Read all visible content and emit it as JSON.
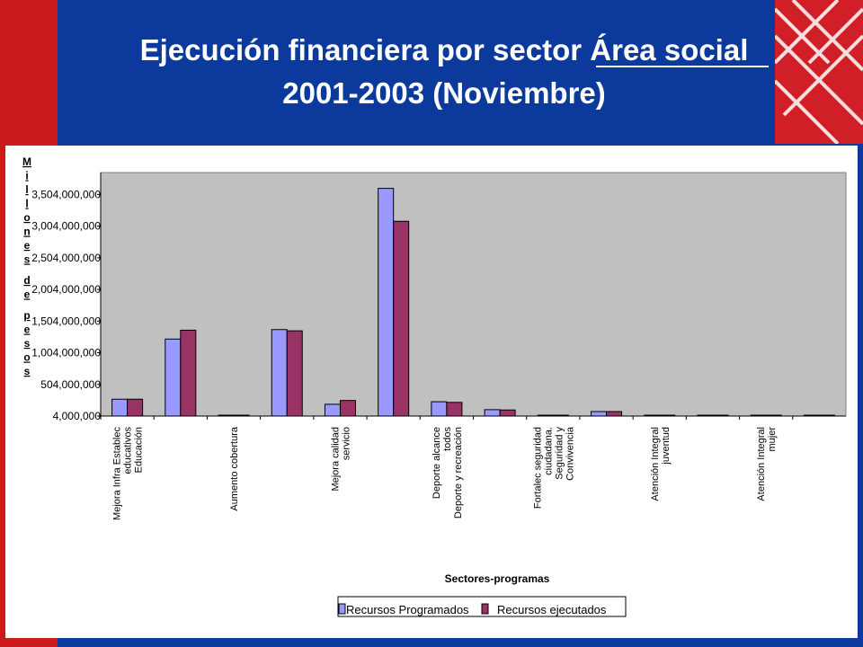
{
  "title_line1": "Ejecución financiera por sector Área social",
  "title_line2": "2001-2003 (Noviembre)",
  "colors": {
    "background": "#0b3a9c",
    "accent_red": "#cc1b1b",
    "plot_bg": "#c0c0c0",
    "programados": "#9999ff",
    "ejecutados": "#993366"
  },
  "chart_data": {
    "type": "bar",
    "ylabel": "Millones de pesos",
    "xlabel": "Sectores-programas",
    "ylim": [
      4000000,
      3850000000
    ],
    "yticks": [
      4000000,
      504000000,
      1004000000,
      1504000000,
      2004000000,
      2504000000,
      3004000000,
      3504000000
    ],
    "ytick_labels": [
      "4,000,000",
      "504,000,000",
      "1,004,000,000",
      "1,504,000,000",
      "2,004,000,000",
      "2,504,000,000",
      "3,004,000,000",
      "3,504,000,000"
    ],
    "categories": [
      "Mejora Infra Establec educativos Educación",
      "",
      "Aumento cobertura",
      "",
      "Mejora calidad servicio",
      "",
      "Deporte alcance todos Deporte y recreación",
      "",
      "Fortalec seguridad ciudadana. Seguridad y Convivencia",
      "",
      "Atención Integral juventud",
      "",
      "Atención Integral mujer",
      ""
    ],
    "category_label_lines": [
      [
        "Mejora Infra Establec",
        "educativos",
        "Educación"
      ],
      [],
      [
        "Aumento cobertura"
      ],
      [],
      [
        "Mejora calidad",
        "servicio"
      ],
      [],
      [
        "Deporte alcance",
        "todos",
        "Deporte y recreación"
      ],
      [],
      [
        "Fortalec seguridad",
        "ciudadana.",
        "Seguridad y",
        "Convivencia"
      ],
      [],
      [
        "Atención Integral",
        "juventud"
      ],
      [],
      [
        "Atención Integral",
        "mujer"
      ],
      []
    ],
    "series": [
      {
        "name": "Recursos Programados",
        "values": [
          270000000,
          1220000000,
          12000000,
          1370000000,
          190000000,
          3600000000,
          230000000,
          105000000,
          8000000,
          75000000,
          5000000,
          8000000,
          4000000,
          9000000
        ]
      },
      {
        "name": "Recursos ejecutados",
        "values": [
          270000000,
          1360000000,
          12000000,
          1350000000,
          250000000,
          3080000000,
          220000000,
          100000000,
          8000000,
          75000000,
          5000000,
          8000000,
          4000000,
          9000000
        ]
      }
    ],
    "grid": false,
    "legend_position": "bottom-center"
  }
}
